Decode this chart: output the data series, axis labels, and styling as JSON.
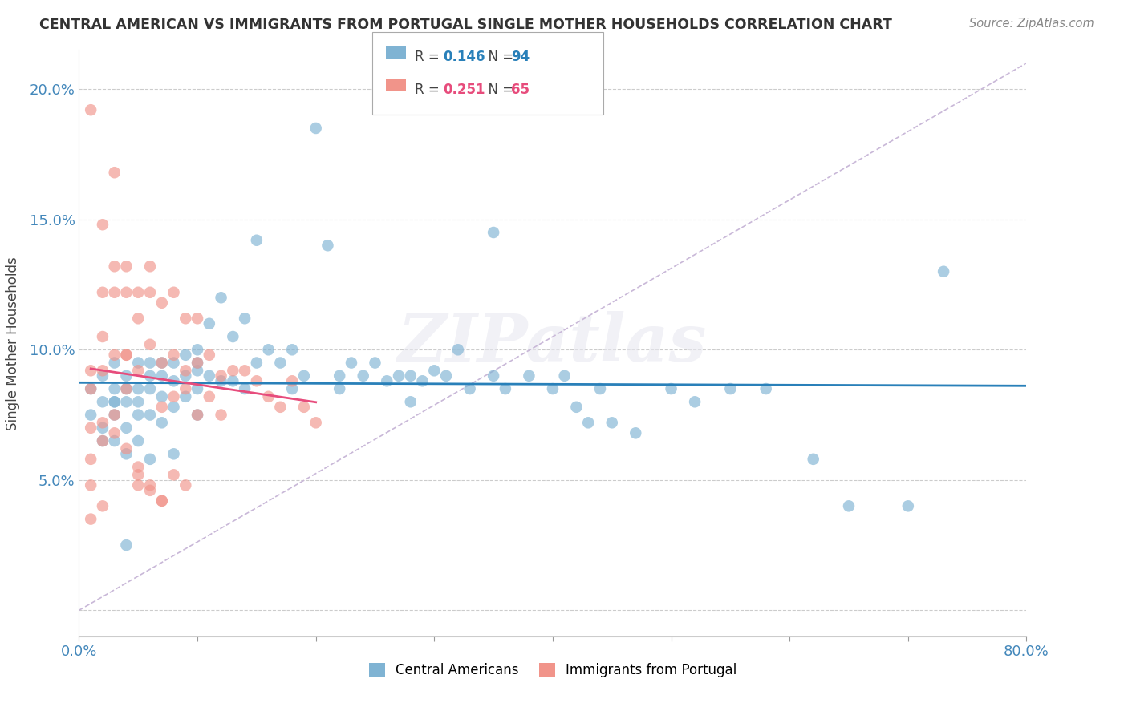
{
  "title": "CENTRAL AMERICAN VS IMMIGRANTS FROM PORTUGAL SINGLE MOTHER HOUSEHOLDS CORRELATION CHART",
  "source": "Source: ZipAtlas.com",
  "ylabel": "Single Mother Households",
  "xlim": [
    0.0,
    0.8
  ],
  "ylim": [
    -0.01,
    0.215
  ],
  "xticks": [
    0.0,
    0.1,
    0.2,
    0.3,
    0.4,
    0.5,
    0.6,
    0.7,
    0.8
  ],
  "xticklabels": [
    "0.0%",
    "",
    "",
    "",
    "",
    "",
    "",
    "",
    "80.0%"
  ],
  "yticks": [
    0.0,
    0.05,
    0.1,
    0.15,
    0.2
  ],
  "yticklabels": [
    "",
    "5.0%",
    "10.0%",
    "15.0%",
    "20.0%"
  ],
  "blue_color": "#7FB3D3",
  "pink_color": "#F1948A",
  "line_blue": "#2980B9",
  "line_pink": "#E74C7C",
  "diag_color": "#C9B8D8",
  "legend_R_blue": "0.146",
  "legend_N_blue": "94",
  "legend_R_pink": "0.251",
  "legend_N_pink": "65",
  "watermark": "ZIPatlas",
  "blue_scatter_x": [
    0.01,
    0.01,
    0.02,
    0.02,
    0.02,
    0.02,
    0.03,
    0.03,
    0.03,
    0.03,
    0.03,
    0.04,
    0.04,
    0.04,
    0.04,
    0.04,
    0.05,
    0.05,
    0.05,
    0.05,
    0.05,
    0.06,
    0.06,
    0.06,
    0.06,
    0.07,
    0.07,
    0.07,
    0.07,
    0.08,
    0.08,
    0.08,
    0.09,
    0.09,
    0.09,
    0.1,
    0.1,
    0.1,
    0.1,
    0.11,
    0.11,
    0.12,
    0.12,
    0.13,
    0.13,
    0.14,
    0.15,
    0.15,
    0.16,
    0.17,
    0.18,
    0.19,
    0.2,
    0.21,
    0.22,
    0.23,
    0.24,
    0.25,
    0.26,
    0.27,
    0.28,
    0.29,
    0.3,
    0.31,
    0.32,
    0.33,
    0.35,
    0.36,
    0.38,
    0.4,
    0.41,
    0.42,
    0.43,
    0.44,
    0.45,
    0.47,
    0.5,
    0.52,
    0.55,
    0.58,
    0.62,
    0.65,
    0.7,
    0.73,
    0.35,
    0.28,
    0.22,
    0.18,
    0.14,
    0.1,
    0.08,
    0.06,
    0.04,
    0.03
  ],
  "blue_scatter_y": [
    0.085,
    0.075,
    0.09,
    0.08,
    0.07,
    0.065,
    0.095,
    0.085,
    0.08,
    0.075,
    0.065,
    0.09,
    0.085,
    0.08,
    0.07,
    0.06,
    0.095,
    0.085,
    0.08,
    0.075,
    0.065,
    0.095,
    0.09,
    0.085,
    0.075,
    0.095,
    0.09,
    0.082,
    0.072,
    0.095,
    0.088,
    0.078,
    0.098,
    0.09,
    0.082,
    0.1,
    0.092,
    0.085,
    0.075,
    0.11,
    0.09,
    0.12,
    0.088,
    0.105,
    0.088,
    0.112,
    0.142,
    0.095,
    0.1,
    0.095,
    0.1,
    0.09,
    0.185,
    0.14,
    0.09,
    0.095,
    0.09,
    0.095,
    0.088,
    0.09,
    0.09,
    0.088,
    0.092,
    0.09,
    0.1,
    0.085,
    0.09,
    0.085,
    0.09,
    0.085,
    0.09,
    0.078,
    0.072,
    0.085,
    0.072,
    0.068,
    0.085,
    0.08,
    0.085,
    0.085,
    0.058,
    0.04,
    0.04,
    0.13,
    0.145,
    0.08,
    0.085,
    0.085,
    0.085,
    0.095,
    0.06,
    0.058,
    0.025,
    0.08
  ],
  "pink_scatter_x": [
    0.01,
    0.01,
    0.01,
    0.01,
    0.01,
    0.02,
    0.02,
    0.02,
    0.02,
    0.02,
    0.03,
    0.03,
    0.03,
    0.03,
    0.04,
    0.04,
    0.04,
    0.04,
    0.05,
    0.05,
    0.05,
    0.06,
    0.06,
    0.06,
    0.07,
    0.07,
    0.07,
    0.08,
    0.08,
    0.08,
    0.09,
    0.09,
    0.1,
    0.1,
    0.1,
    0.11,
    0.11,
    0.12,
    0.12,
    0.13,
    0.14,
    0.15,
    0.16,
    0.17,
    0.18,
    0.19,
    0.2,
    0.05,
    0.06,
    0.07,
    0.03,
    0.02,
    0.01,
    0.04,
    0.05,
    0.06,
    0.07,
    0.08,
    0.09,
    0.09,
    0.03,
    0.04,
    0.05,
    0.02,
    0.01
  ],
  "pink_scatter_y": [
    0.092,
    0.085,
    0.07,
    0.058,
    0.048,
    0.122,
    0.105,
    0.092,
    0.072,
    0.065,
    0.132,
    0.122,
    0.098,
    0.075,
    0.132,
    0.122,
    0.098,
    0.085,
    0.122,
    0.112,
    0.092,
    0.132,
    0.122,
    0.102,
    0.118,
    0.095,
    0.078,
    0.122,
    0.098,
    0.082,
    0.112,
    0.092,
    0.112,
    0.095,
    0.075,
    0.098,
    0.082,
    0.09,
    0.075,
    0.092,
    0.092,
    0.088,
    0.082,
    0.078,
    0.088,
    0.078,
    0.072,
    0.048,
    0.046,
    0.042,
    0.168,
    0.148,
    0.192,
    0.098,
    0.052,
    0.048,
    0.042,
    0.052,
    0.048,
    0.085,
    0.068,
    0.062,
    0.055,
    0.04,
    0.035
  ]
}
